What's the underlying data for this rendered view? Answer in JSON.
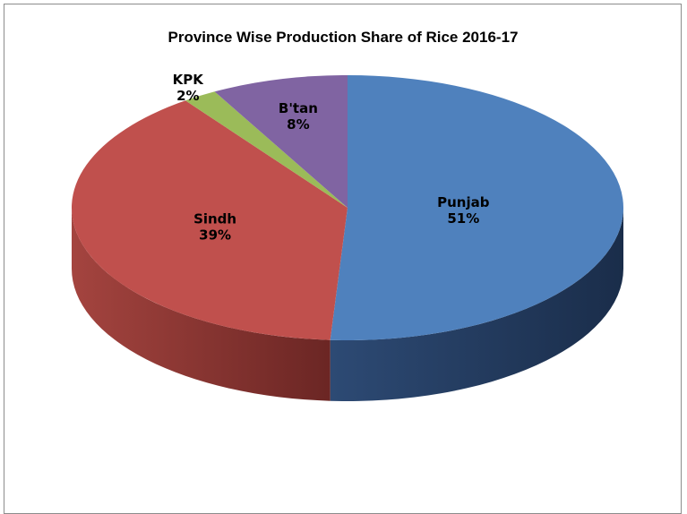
{
  "chart_data": {
    "type": "pie",
    "title": "Province Wise Production Share of Rice 2016-17",
    "slices": [
      {
        "label": "Punjab",
        "value": 51,
        "value_label": "51%",
        "color": "#4f81bd",
        "side_color": "#1f3556"
      },
      {
        "label": "Sindh",
        "value": 39,
        "value_label": "39%",
        "color": "#c0504d",
        "side_color": "#7f2c2a"
      },
      {
        "label": "KPK",
        "value": 2,
        "value_label": "2%",
        "color": "#9bbb59",
        "side_color": "#5d7231"
      },
      {
        "label": "B'tan",
        "value": 8,
        "value_label": "8%",
        "color": "#8064a2",
        "side_color": "#4b3a61"
      }
    ],
    "start_position": "top",
    "direction": "clockwise",
    "style": "3d",
    "legend": "none"
  }
}
